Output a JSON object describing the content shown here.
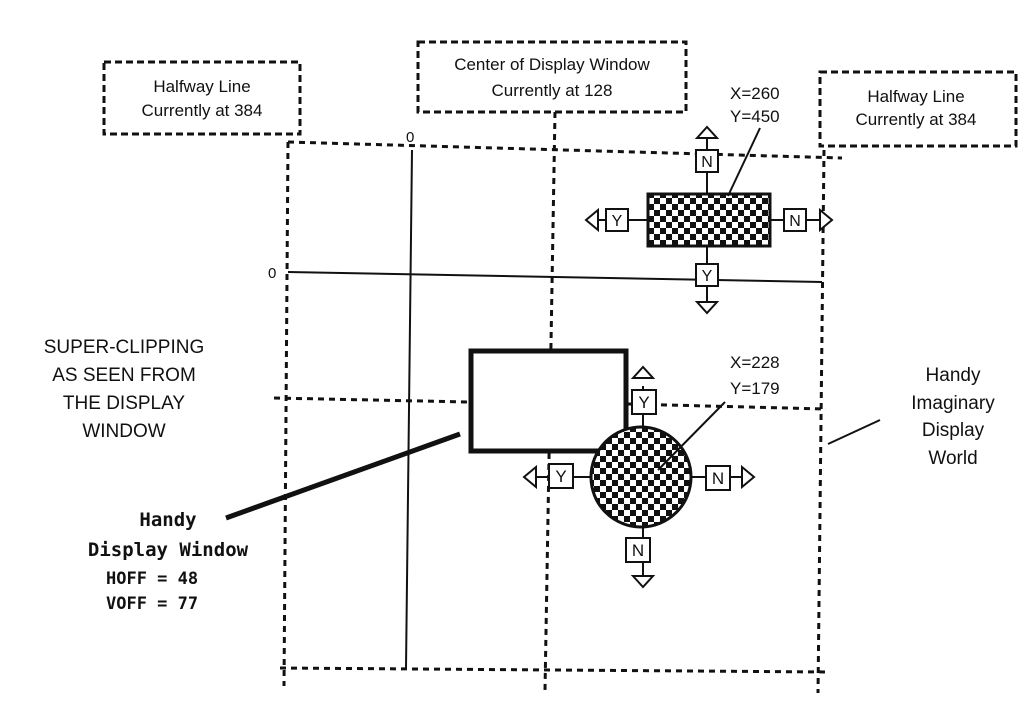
{
  "callouts": {
    "halfway_left": [
      "Halfway Line",
      "Currently at 384"
    ],
    "center": [
      "Center of Display Window",
      "Currently at 128"
    ],
    "halfway_right": [
      "Halfway Line",
      "Currently at 384"
    ]
  },
  "axes": {
    "x_zero": "0",
    "y_zero": "0"
  },
  "sprite_top": {
    "coords": [
      "X=260",
      "Y=450"
    ],
    "arrow_labels": {
      "up": "N",
      "left": "Y",
      "right": "N",
      "down": "Y"
    }
  },
  "sprite_bottom": {
    "coords": [
      "X=228",
      "Y=179"
    ],
    "arrow_labels": {
      "up": "Y",
      "left": "Y",
      "right": "N",
      "down": "N"
    }
  },
  "super_clipping": [
    "SUPER-CLIPPING",
    "AS SEEN FROM",
    "THE DISPLAY",
    "WINDOW"
  ],
  "display_window": {
    "title": [
      "Handy",
      "Display  Window"
    ],
    "hoff": "HOFF = 48",
    "voff": "VOFF = 77"
  },
  "world_label": [
    "Handy",
    "Imaginary",
    "Display",
    "World"
  ]
}
